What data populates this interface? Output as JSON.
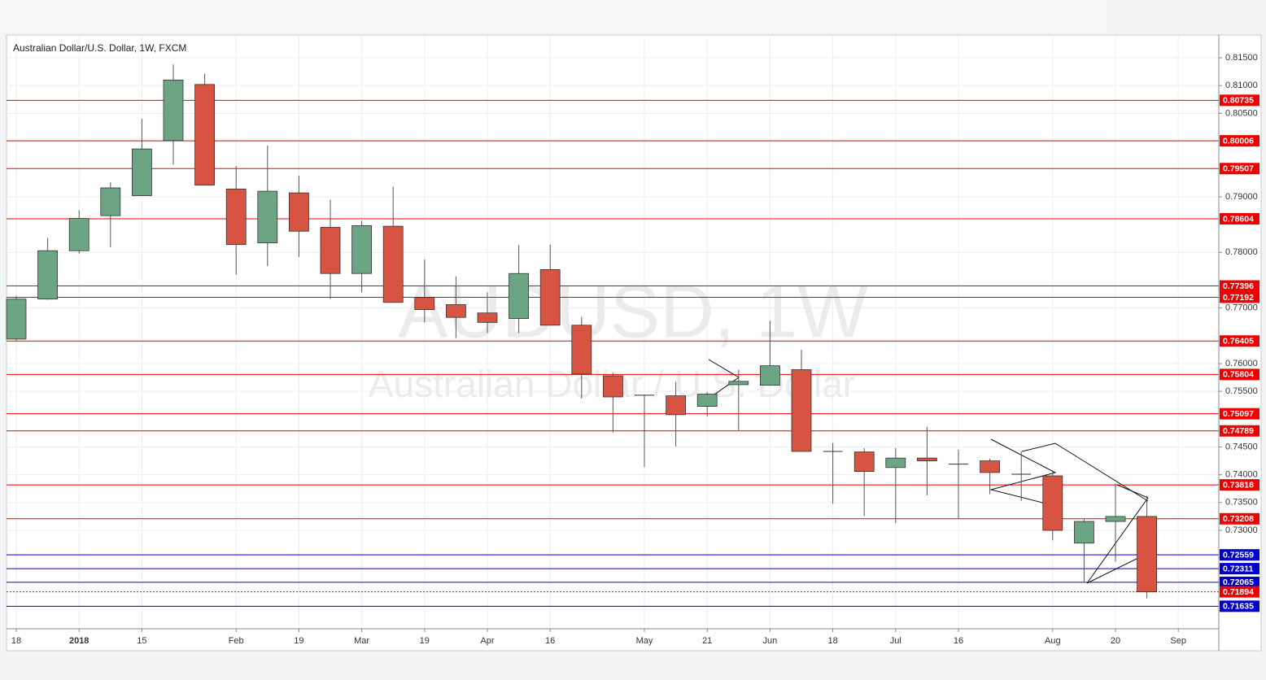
{
  "chart_data": {
    "type": "candlestick",
    "title": "Australian Dollar/U.S. Dollar, 1W, FXCM",
    "watermark": "AUDUSD, 1W",
    "watermark_subtitle": "Australian Dollar / U.S. Dollar",
    "categories": [
      "18",
      null,
      "2018",
      null,
      "15",
      null,
      null,
      "Feb",
      null,
      "19",
      null,
      "Mar",
      null,
      "19",
      null,
      "Apr",
      null,
      "16",
      null,
      null,
      "May",
      null,
      "21",
      null,
      "Jun",
      null,
      "18",
      null,
      "Jul",
      null,
      "16",
      null,
      null,
      "Aug",
      null,
      "20",
      null,
      "Sep"
    ],
    "open": [
      0.7644,
      0.7716,
      0.7803,
      0.7866,
      0.7902,
      0.8001,
      0.8102,
      0.7914,
      0.7817,
      0.7907,
      0.7845,
      0.7762,
      0.7847,
      0.7719,
      0.7706,
      0.7691,
      0.7681,
      0.7769,
      0.7669,
      0.7578,
      0.7543,
      0.7542,
      0.7523,
      0.7562,
      0.7561,
      0.7589,
      0.7442,
      0.7441,
      0.7413,
      0.743,
      0.7419,
      0.7425,
      0.7401,
      0.7398,
      0.7277,
      0.7316,
      0.7325,
      null
    ],
    "high": [
      0.7722,
      0.7826,
      0.7876,
      0.7926,
      0.804,
      0.8138,
      0.8121,
      0.7955,
      0.7992,
      0.7938,
      0.7895,
      0.7857,
      0.7918,
      0.7787,
      0.7757,
      0.7728,
      0.7813,
      0.7814,
      0.7684,
      0.7584,
      0.7543,
      0.7567,
      0.7549,
      0.7589,
      0.7677,
      0.7625,
      0.7457,
      0.7448,
      0.7448,
      0.7486,
      0.7445,
      0.7429,
      0.7442,
      0.7406,
      0.7321,
      0.7384,
      0.7362,
      null
    ],
    "low": [
      0.7641,
      0.7715,
      0.7798,
      0.7809,
      0.7902,
      0.7958,
      0.7921,
      0.776,
      0.7775,
      0.7792,
      0.7716,
      0.7728,
      0.771,
      0.7674,
      0.7646,
      0.7655,
      0.7655,
      0.7669,
      0.7537,
      0.7476,
      0.7414,
      0.7451,
      0.7505,
      0.748,
      0.7561,
      0.7442,
      0.7348,
      0.7326,
      0.7313,
      0.7363,
      0.7322,
      0.7365,
      0.7353,
      0.7282,
      0.7206,
      0.7244,
      0.7178,
      null
    ],
    "close": [
      0.7716,
      0.7803,
      0.7861,
      0.7916,
      0.7986,
      0.811,
      0.7921,
      0.7814,
      0.791,
      0.7838,
      0.7762,
      0.7848,
      0.771,
      0.7697,
      0.7683,
      0.7674,
      0.7762,
      0.7669,
      0.7581,
      0.754,
      0.7543,
      0.7508,
      0.7545,
      0.7568,
      0.7596,
      0.7442,
      0.7442,
      0.7406,
      0.743,
      0.7425,
      0.7419,
      0.7404,
      0.7401,
      0.73,
      0.7316,
      0.7325,
      0.71894,
      null
    ],
    "up_color": "#6ba583",
    "down_color": "#d75442",
    "ylim": [
      0.7123,
      0.8191
    ],
    "yticks": [
      {
        "value": 0.815,
        "label": "0.81500"
      },
      {
        "value": 0.81,
        "label": "0.81000"
      },
      {
        "value": 0.805,
        "label": "0.80500"
      },
      {
        "value": 0.79,
        "label": "0.79000"
      },
      {
        "value": 0.78,
        "label": "0.78000"
      },
      {
        "value": 0.77,
        "label": "0.77000"
      },
      {
        "value": 0.76,
        "label": "0.76000"
      },
      {
        "value": 0.755,
        "label": "0.75500"
      },
      {
        "value": 0.745,
        "label": "0.74500"
      },
      {
        "value": 0.74,
        "label": "0.74000"
      },
      {
        "value": 0.735,
        "label": "0.73500"
      },
      {
        "value": 0.73,
        "label": "0.73000"
      }
    ],
    "levels": [
      {
        "value": 0.80735,
        "color": "#ee0000"
      },
      {
        "value": 0.80006,
        "color": "#ee0000"
      },
      {
        "value": 0.79507,
        "color": "#ee0000"
      },
      {
        "value": 0.78604,
        "color": "#ee0000"
      },
      {
        "value": 0.77396,
        "color": "#ee0000"
      },
      {
        "value": 0.77192,
        "color": "#ee0000"
      },
      {
        "value": 0.76405,
        "color": "#ee0000"
      },
      {
        "value": 0.75804,
        "color": "#ee0000"
      },
      {
        "value": 0.75097,
        "color": "#ee0000"
      },
      {
        "value": 0.74789,
        "color": "#ee0000"
      },
      {
        "value": 0.73818,
        "color": "#ee0000"
      },
      {
        "value": 0.73208,
        "color": "#ee0000"
      },
      {
        "value": 0.72559,
        "color": "#0000cc"
      },
      {
        "value": 0.72311,
        "color": "#0000cc"
      },
      {
        "value": 0.72065,
        "color": "#0000cc"
      },
      {
        "value": 0.71894,
        "color": "#ee0000",
        "style": "dotted"
      },
      {
        "value": 0.71635,
        "color": "#0000cc"
      }
    ],
    "grid": true
  }
}
